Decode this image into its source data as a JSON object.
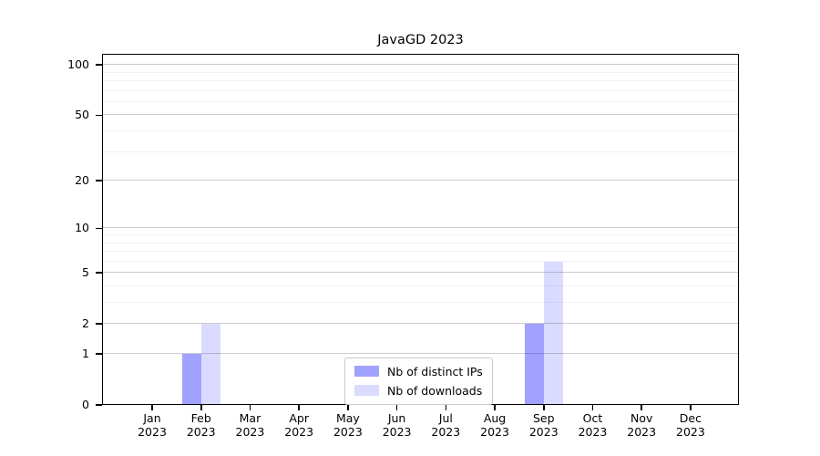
{
  "figure": {
    "title": "JavaGD 2023",
    "background": "#ffffff"
  },
  "chart_data": {
    "type": "bar",
    "title": "JavaGD 2023",
    "categories": [
      "Jan 2023",
      "Feb 2023",
      "Mar 2023",
      "Apr 2023",
      "May 2023",
      "Jun 2023",
      "Jul 2023",
      "Aug 2023",
      "Sep 2023",
      "Oct 2023",
      "Nov 2023",
      "Dec 2023"
    ],
    "series": [
      {
        "name": "Nb of distinct IPs",
        "color": "#0000FF5E",
        "values": [
          0,
          1,
          0,
          0,
          0,
          0,
          0,
          0,
          2,
          0,
          0,
          0
        ]
      },
      {
        "name": "Nb of downloads",
        "color": "#0000FF24",
        "values": [
          0,
          2,
          0,
          0,
          0,
          0,
          0,
          0,
          6,
          0,
          0,
          0
        ]
      }
    ],
    "xlabel": "",
    "ylabel": "",
    "y_scale": "log1p",
    "ylim": [
      0,
      113
    ],
    "y_major_ticks": [
      0,
      1,
      2,
      5,
      10,
      20,
      50,
      100
    ],
    "y_minor_gridlines": [
      3,
      4,
      6,
      7,
      8,
      9,
      30,
      40,
      60,
      70,
      80,
      90
    ],
    "grid": "horizontal",
    "legend_position": "lower center",
    "colors": {
      "major_grid": "#cccccc",
      "minor_grid": "#f1f1f1",
      "axis_line": "#000000",
      "text": "#000000"
    }
  }
}
